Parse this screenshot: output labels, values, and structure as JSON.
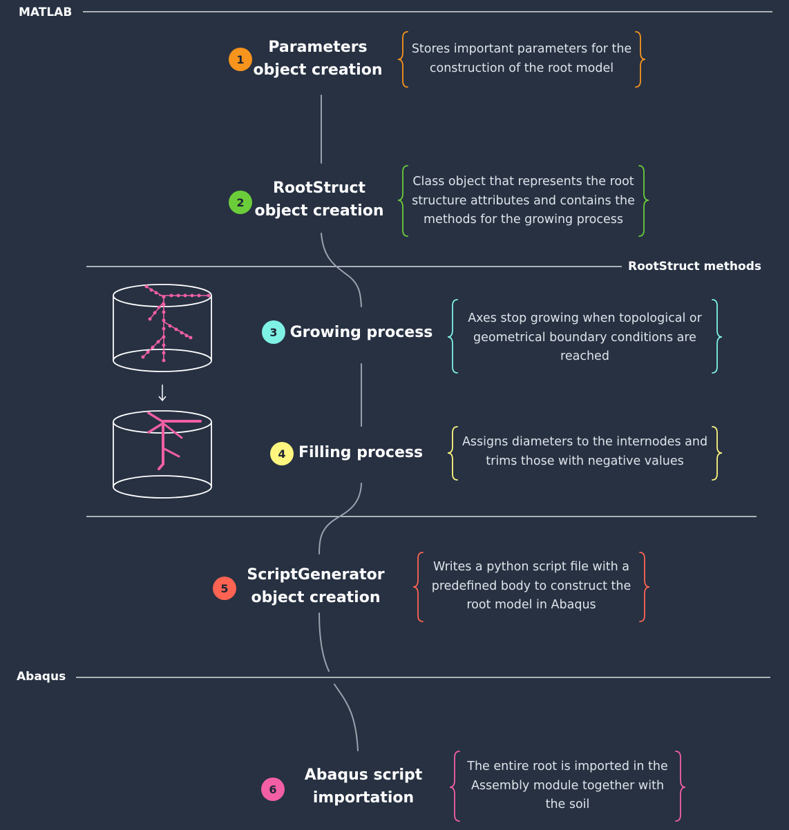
{
  "sections": {
    "matlab": "MATLAB",
    "rootstruct_methods": "RootStruct methods",
    "abaqus": "Abaqus"
  },
  "steps": [
    {
      "number": "1",
      "color": "#f7941d",
      "title_lines": [
        "Parameters",
        "object creation"
      ],
      "desc_lines": [
        "Stores important parameters for the",
        "construction of the root model"
      ]
    },
    {
      "number": "2",
      "color": "#6ccd3a",
      "title_lines": [
        "RootStruct",
        "object creation"
      ],
      "desc_lines": [
        "Class object that represents the root",
        "structure attributes and contains the",
        "methods for the growing process"
      ]
    },
    {
      "number": "3",
      "color": "#7ff2e6",
      "title_lines": [
        "Growing process"
      ],
      "desc_lines": [
        "Axes stop growing when topological or",
        "geometrical boundary conditions are",
        "reached"
      ]
    },
    {
      "number": "4",
      "color": "#fff67f",
      "title_lines": [
        "Filling process"
      ],
      "desc_lines": [
        "Assigns diameters to the internodes and",
        "trims those with negative values"
      ]
    },
    {
      "number": "5",
      "color": "#ff6352",
      "title_lines": [
        "ScriptGenerator",
        "object creation"
      ],
      "desc_lines": [
        "Writes a python script file with a",
        "predefined body to construct the",
        "root model in Abaqus"
      ]
    },
    {
      "number": "6",
      "color": "#f25fa5",
      "title_lines": [
        "Abaqus script",
        "importation"
      ],
      "desc_lines": [
        "The entire root is imported in the",
        "Assembly module together with",
        "the soil"
      ]
    }
  ],
  "colors": {
    "background": "#273142",
    "rule": "#ffffff",
    "connector": "#9aa3ad",
    "root_pink": "#f25fa5"
  },
  "icons": [
    "cylinder-dotted-root-icon",
    "down-arrow-icon",
    "cylinder-filled-root-icon"
  ]
}
